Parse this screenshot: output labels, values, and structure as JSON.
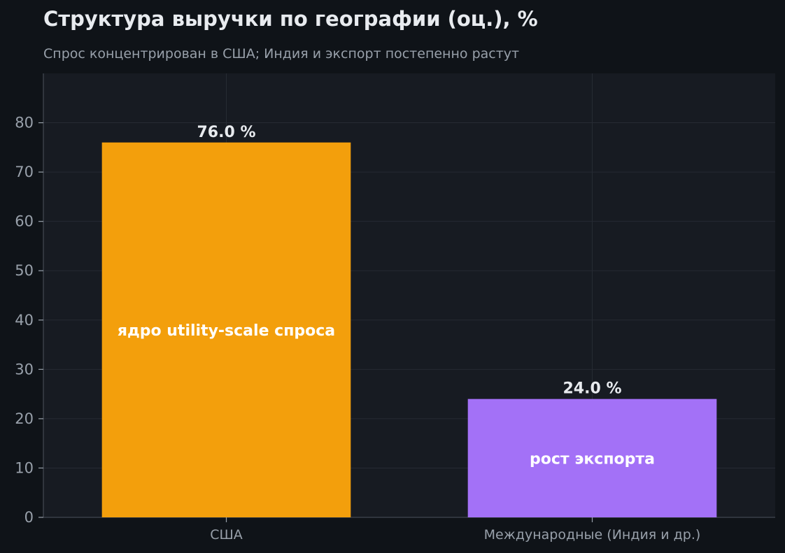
{
  "chart_data": {
    "type": "bar",
    "title": "Структура выручки по географии (оц.), %",
    "subtitle": "Спрос концентрирован в США; Индия и экспорт постепенно растут",
    "categories": [
      "США",
      "Международные (Индия и др.)"
    ],
    "values": [
      76.0,
      24.0
    ],
    "value_labels": [
      "76.0 %",
      "24.0 %"
    ],
    "bar_annotations": [
      "ядро utility-scale спроса",
      "рост экспорта"
    ],
    "bar_colors": [
      "#f39f0c",
      "#a371f7"
    ],
    "xlabel": "",
    "ylabel": "",
    "ylim": [
      0,
      90
    ],
    "yticks": [
      0,
      10,
      20,
      30,
      40,
      50,
      60,
      70,
      80
    ],
    "grid": true,
    "colors": {
      "background": "#0f1318",
      "plot_background": "#171b22",
      "grid": "#262b33",
      "axis": "#3a4049",
      "tick_text": "#98a0aa",
      "value_text": "#e8ebef",
      "annotation_text": "#ffffff"
    }
  }
}
